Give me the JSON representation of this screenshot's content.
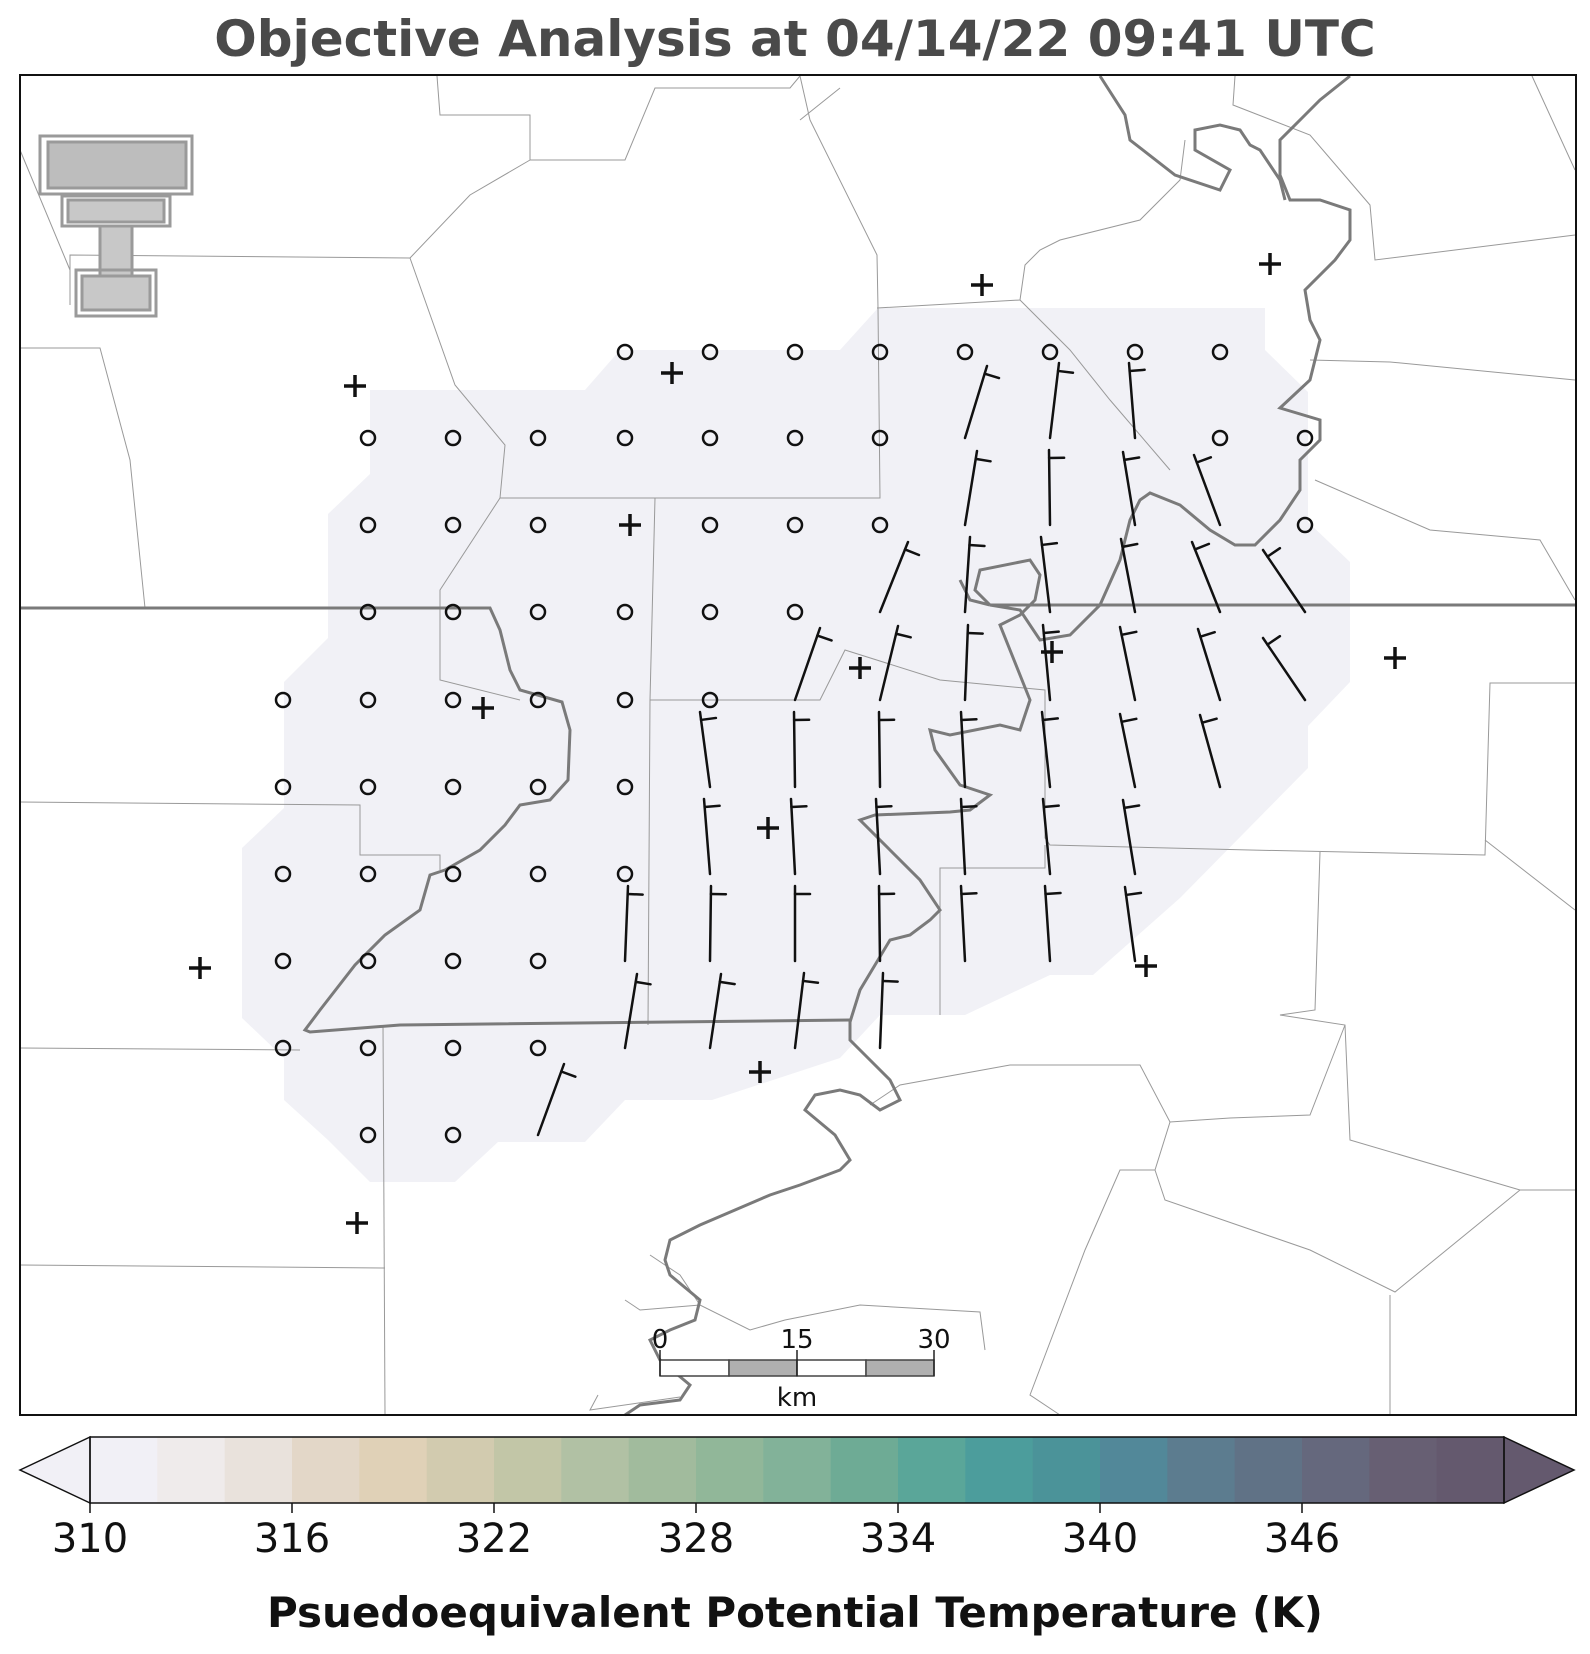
{
  "title": "Objective Analysis at 04/14/22 09:41 UTC",
  "logo": {
    "name": "texas-tech-double-t-logo",
    "color": "#9a9a9a"
  },
  "scale_bar": {
    "ticks": [
      "0",
      "15",
      "30"
    ],
    "unit": "km"
  },
  "colorbar": {
    "label": "Psuedoequivalent Potential Temperature (K)",
    "tick_labels": [
      "310",
      "316",
      "322",
      "328",
      "334",
      "340",
      "346"
    ],
    "colors": [
      "#f1f0f6",
      "#efebeb",
      "#e9e2dc",
      "#e3d7c8",
      "#e0d1b7",
      "#d2cbaf",
      "#c2c6a7",
      "#b1c1a4",
      "#a1bb9d",
      "#91b799",
      "#82b299",
      "#6eab95",
      "#5aa699",
      "#4c9d9c",
      "#4b9399",
      "#528899",
      "#5c7c8f",
      "#607286",
      "#65687d",
      "#675f73",
      "#64596e"
    ],
    "extend_min_color": "#f1f0f6",
    "extend_max_color": "#64596e"
  },
  "analysis_shading_color": "#f1f1f6",
  "station_marker": "+",
  "calm_marker": "o"
}
